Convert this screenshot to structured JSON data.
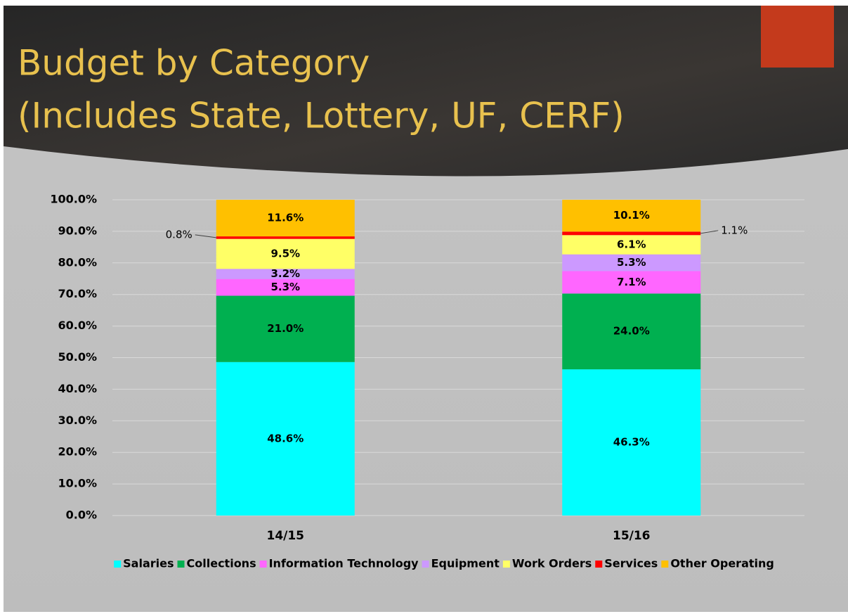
{
  "chart_data": {
    "type": "stacked_bar",
    "title": "Budget by Category",
    "subtitle": "(Includes State, Lottery, UF, CERF)",
    "categories": [
      "14/15",
      "15/16"
    ],
    "series": [
      {
        "name": "Salaries",
        "color": "#00ffff",
        "values": [
          48.6,
          46.3
        ],
        "value_labels": [
          "48.6%",
          "46.3%"
        ]
      },
      {
        "name": "Collections",
        "color": "#00b050",
        "values": [
          21.0,
          24.0
        ],
        "value_labels": [
          "21.0%",
          "24.0%"
        ]
      },
      {
        "name": "Information Technology",
        "color": "#ff66ff",
        "values": [
          5.3,
          7.1
        ],
        "value_labels": [
          "5.3%",
          "7.1%"
        ]
      },
      {
        "name": "Equipment",
        "color": "#cc99ff",
        "values": [
          3.2,
          5.3
        ],
        "value_labels": [
          "3.2%",
          "5.3%"
        ]
      },
      {
        "name": "Work Orders",
        "color": "#ffff66",
        "values": [
          9.5,
          6.1
        ],
        "value_labels": [
          "9.5%",
          "6.1%"
        ]
      },
      {
        "name": "Services",
        "color": "#ff0000",
        "values": [
          0.8,
          1.1
        ],
        "value_labels": [
          "0.8%",
          "1.1%"
        ],
        "label_position": "outside"
      },
      {
        "name": "Other Operating",
        "color": "#ffc000",
        "values": [
          11.6,
          10.1
        ],
        "value_labels": [
          "11.6%",
          "10.1%"
        ]
      }
    ],
    "ylim": [
      0,
      100
    ],
    "yticks": [
      {
        "value": 0,
        "label": "0.0%"
      },
      {
        "value": 10,
        "label": "10.0%"
      },
      {
        "value": 20,
        "label": "20.0%"
      },
      {
        "value": 30,
        "label": "30.0%"
      },
      {
        "value": 40,
        "label": "40.0%"
      },
      {
        "value": 50,
        "label": "50.0%"
      },
      {
        "value": 60,
        "label": "60.0%"
      },
      {
        "value": 70,
        "label": "70.0%"
      },
      {
        "value": 80,
        "label": "80.0%"
      },
      {
        "value": 90,
        "label": "90.0%"
      },
      {
        "value": 100,
        "label": "100.0%"
      }
    ],
    "grid": true,
    "legend": "bottom"
  }
}
